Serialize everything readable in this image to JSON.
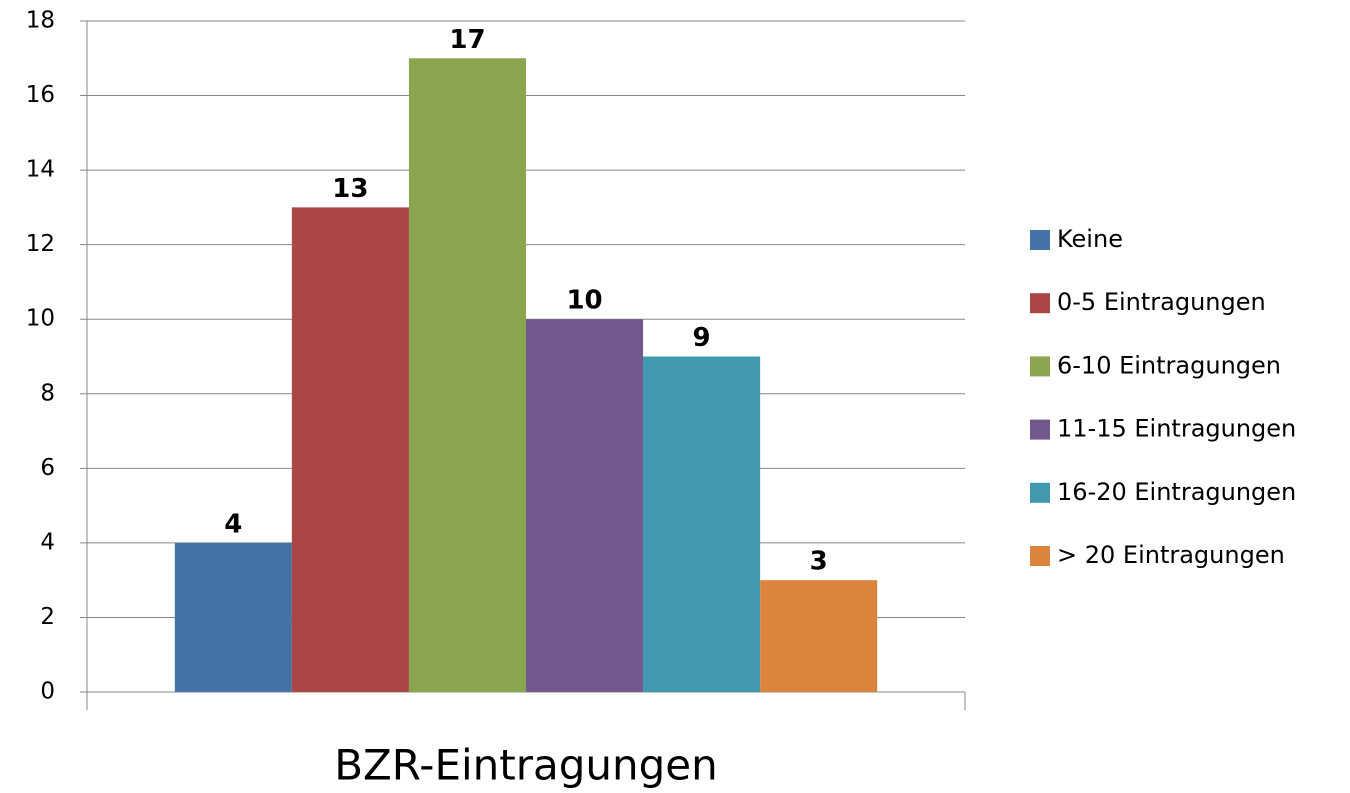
{
  "chart_data": {
    "type": "bar",
    "categories": [
      "BZR-Eintragungen"
    ],
    "series": [
      {
        "name": "Keine",
        "color": "#4572a7",
        "values": [
          4
        ]
      },
      {
        "name": "0-5 Eintragungen",
        "color": "#aa4643",
        "values": [
          13
        ]
      },
      {
        "name": "6-10 Eintragungen",
        "color": "#89a54e",
        "values": [
          17
        ]
      },
      {
        "name": "11-15 Eintragungen",
        "color": "#71588f",
        "values": [
          10
        ]
      },
      {
        "name": "16-20 Eintragungen",
        "color": "#4198af",
        "values": [
          9
        ]
      },
      {
        "name": "> 20 Eintragungen",
        "color": "#db843d",
        "values": [
          3
        ]
      }
    ],
    "ylim": [
      0,
      18
    ],
    "yticks": [
      0,
      2,
      4,
      6,
      8,
      10,
      12,
      14,
      16,
      18
    ],
    "grid": true,
    "legend": "right"
  }
}
